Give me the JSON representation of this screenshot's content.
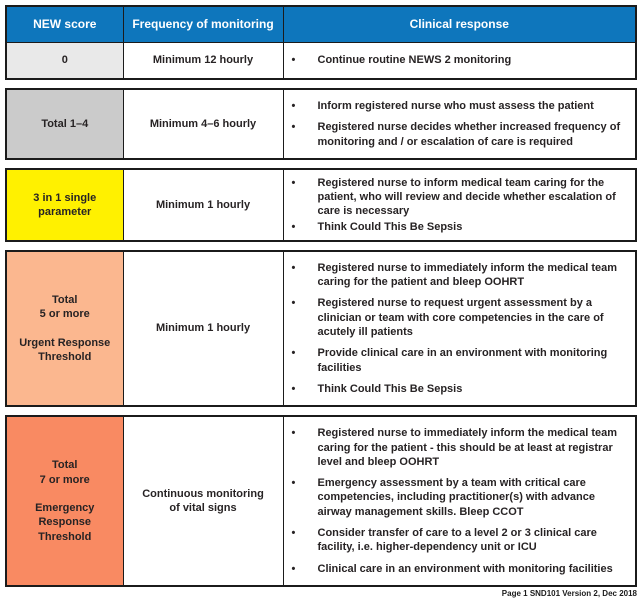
{
  "colors": {
    "header_bg": "#0e76bc",
    "header_text": "#ffffff",
    "score0_bg": "#e9e9e9",
    "score1to4_bg": "#cbcbcb",
    "score3single_bg": "#fff100",
    "score5plus_bg": "#fbb78f",
    "score7plus_bg": "#f98a62",
    "border": "#1b1b1b",
    "text": "#272324"
  },
  "bullet_glyph": "•",
  "table": {
    "headers": [
      "NEW score",
      "Frequency of monitoring",
      "Clinical response"
    ],
    "rows": [
      {
        "score": "0",
        "frequency": "Minimum 12 hourly",
        "responses": [
          "Continue routine NEWS 2 monitoring"
        ]
      },
      {
        "score": "Total 1–4",
        "frequency": "Minimum 4–6 hourly",
        "responses": [
          "Inform registered nurse who must assess the patient",
          "Registered nurse decides whether increased frequency of monitoring and / or escalation of care is required"
        ]
      },
      {
        "score": "3 in 1 single\nparameter",
        "frequency": "Minimum 1 hourly",
        "responses": [
          "Registered nurse to inform medical team caring for the patient, who will review and decide whether escalation of care is necessary",
          "Think Could This Be Sepsis"
        ]
      },
      {
        "score": "Total\n5 or more\n\nUrgent Response\nThreshold",
        "frequency": "Minimum 1 hourly",
        "responses": [
          "Registered nurse to immediately inform the medical team caring for the patient and bleep OOHRT",
          "Registered nurse to request urgent assessment by a clinician or team with core competencies in the care of acutely ill patients",
          "Provide clinical care in an environment with monitoring facilities",
          "Think Could This Be Sepsis"
        ]
      },
      {
        "score": "Total\n7 or more\n\nEmergency\nResponse\nThreshold",
        "frequency": "Continuous monitoring\nof vital signs",
        "responses": [
          "Registered nurse to immediately inform the medical team caring for the patient - this should be at least at registrar level and bleep OOHRT",
          "Emergency assessment by a team with critical care competencies, including practitioner(s) with advance airway management skills. Bleep CCOT",
          "Consider transfer of care to a level 2 or 3 clinical care facility, i.e. higher-dependency unit or ICU",
          "Clinical care in an environment with monitoring facilities"
        ]
      }
    ]
  },
  "footer": {
    "text": "Page 1 SND101 Version 2, Dec 2018"
  }
}
